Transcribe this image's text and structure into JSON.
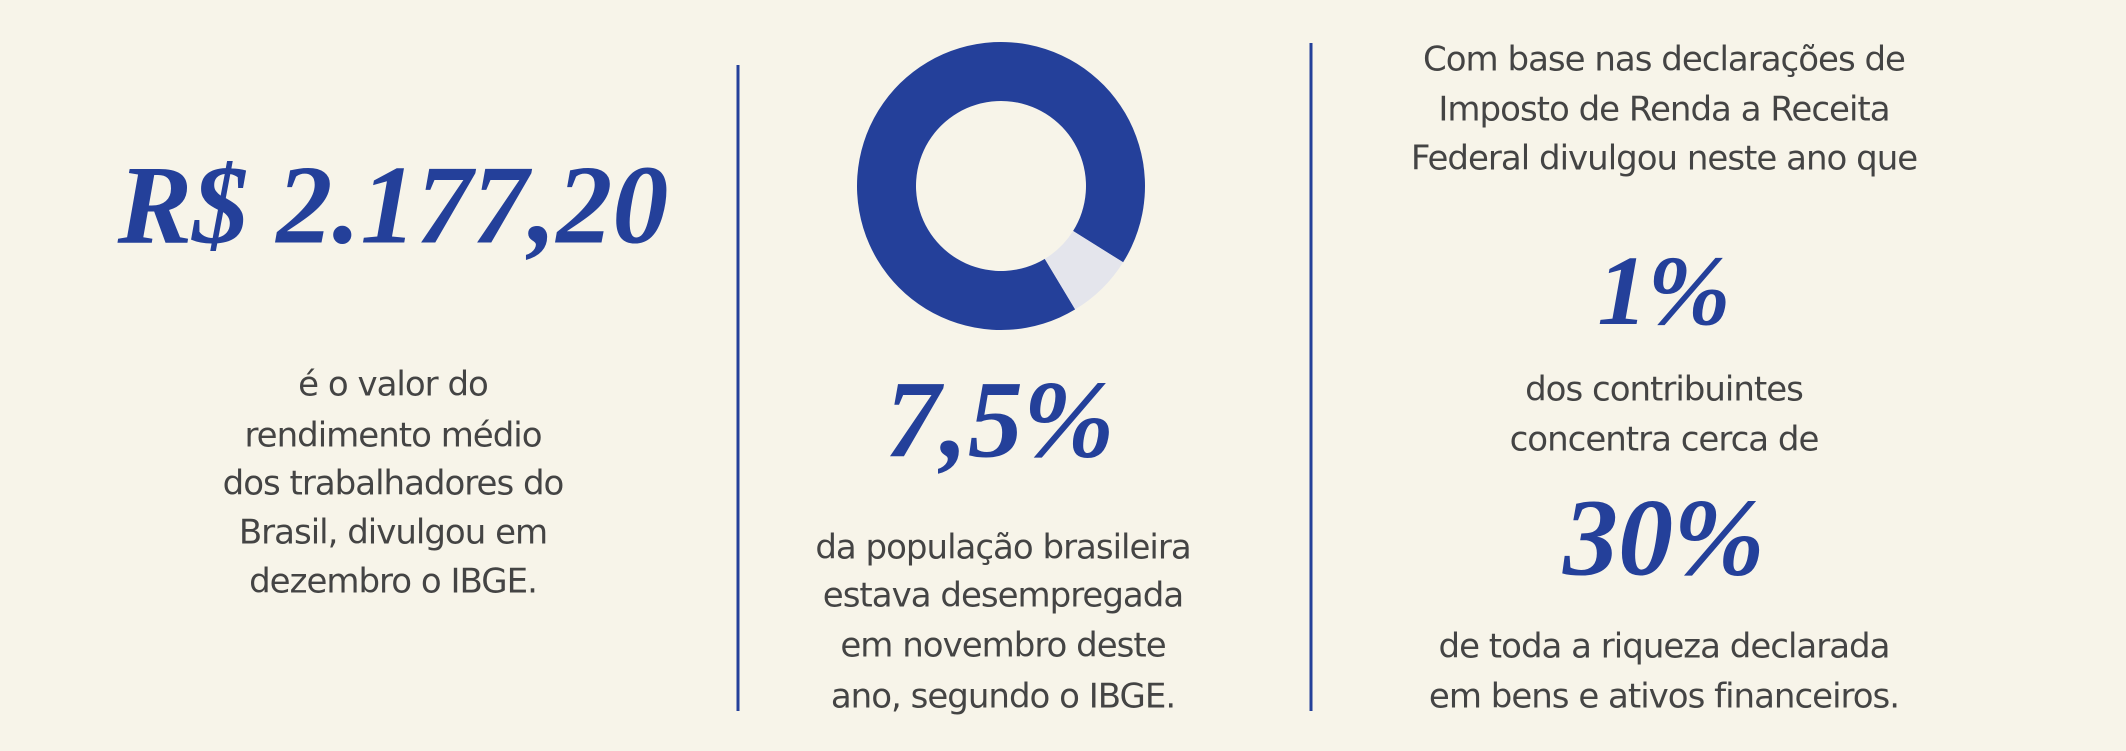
{
  "columns": [
    {
      "highlight": "R$ 2.177,20",
      "text": [
        "é o valor do",
        "rendimento médio",
        "dos trabalhadores do",
        "Brasil, divulgou em",
        "dezembro o IBGE."
      ]
    },
    {
      "donut": {
        "value": 7.5,
        "label": "7,5%"
      },
      "text": [
        "da população brasileira",
        "estava desempregada",
        "em novembro deste",
        "ano, segundo o IBGE."
      ]
    },
    {
      "intro": [
        "Com base nas declarações de",
        "Imposto de Renda a Receita",
        "Federal divulgou neste ano que"
      ],
      "highlight_1": "1%",
      "text_1": [
        "dos contribuintes",
        "concentra cerca de"
      ],
      "highlight_2": "30%",
      "text_2": [
        "de toda a riqueza declarada",
        "em bens e ativos financeiros."
      ]
    }
  ]
}
